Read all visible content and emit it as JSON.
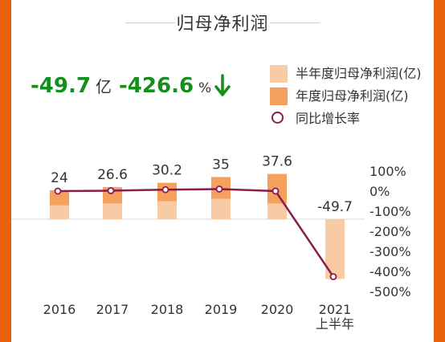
{
  "title": "归母净利润",
  "kpis": {
    "profit_value": "-49.7",
    "profit_unit": "亿",
    "growth_value": "-426.6",
    "growth_unit": "%"
  },
  "legend": [
    {
      "label": "半年度归母净利润(亿)",
      "color": "#f9cba5"
    },
    {
      "label": "年度归母净利润(亿)",
      "color": "#f5a05d"
    },
    {
      "label": "同比增长率",
      "color": "#8a1c4a"
    }
  ],
  "colors": {
    "half_year": "#f9cba5",
    "annual": "#f5a05d",
    "line": "#8a1c4a",
    "positive_kpi": "#148f1c",
    "arrow": "#148f1c"
  },
  "icons": {
    "trend": "down-arrow-icon"
  },
  "chart_data": {
    "type": "bar",
    "categories": [
      "2016",
      "2017",
      "2018",
      "2019",
      "2020",
      "2021\n上半年"
    ],
    "category_lines": [
      [
        "2016"
      ],
      [
        "2017"
      ],
      [
        "2018"
      ],
      [
        "2019"
      ],
      [
        "2020"
      ],
      [
        "2021",
        "上半年"
      ]
    ],
    "series": [
      {
        "name": "半年度归母净利润(亿)",
        "values": [
          11.5,
          13,
          15,
          17,
          13,
          -49.7
        ]
      },
      {
        "name": "年度归母净利润(亿)",
        "values": [
          24,
          26.6,
          30.2,
          35,
          37.6,
          null
        ]
      },
      {
        "name": "同比增长率",
        "type": "line",
        "axis": "right",
        "values": [
          0,
          2,
          7,
          10,
          0,
          -426.6
        ]
      }
    ],
    "data_labels": [
      "24",
      "26.6",
      "30.2",
      "35",
      "37.6",
      "-49.7"
    ],
    "y2_ticks": [
      "100%",
      "0%",
      "-100%",
      "-200%",
      "-300%",
      "-400%",
      "-500%"
    ],
    "y2_tick_values": [
      100,
      0,
      -100,
      -200,
      -300,
      -400,
      -500
    ],
    "y2lim": [
      -500,
      100
    ]
  }
}
